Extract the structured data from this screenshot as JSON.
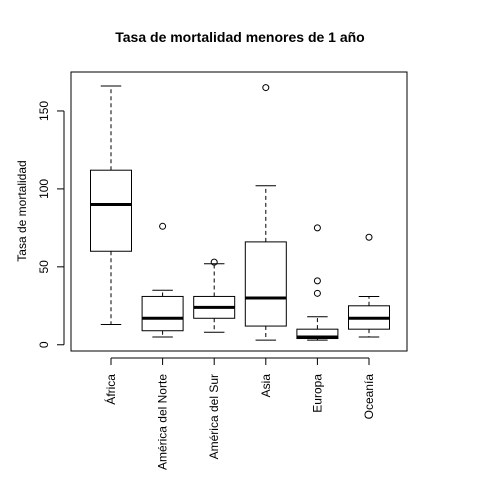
{
  "chart_data": {
    "type": "boxplot",
    "title": "Tasa de mortalidad menores de 1 año",
    "xlabel": "",
    "ylabel": "Tasa de mortalidad",
    "ylim": [
      -4,
      175
    ],
    "yticks": [
      0,
      50,
      100,
      150
    ],
    "grid": false,
    "categories": [
      "África",
      "América del Norte",
      "América del Sur",
      "Asia",
      "Europa",
      "Oceanía"
    ],
    "boxes": [
      {
        "category": "África",
        "whisker_low": 13,
        "q1": 60,
        "median": 90,
        "q3": 112,
        "whisker_high": 166,
        "outliers": []
      },
      {
        "category": "América del Norte",
        "whisker_low": 5,
        "q1": 9,
        "median": 17,
        "q3": 31,
        "whisker_high": 35,
        "outliers": [
          76
        ]
      },
      {
        "category": "América del Sur",
        "whisker_low": 8,
        "q1": 17,
        "median": 24,
        "q3": 31,
        "whisker_high": 52,
        "outliers": [
          53
        ]
      },
      {
        "category": "Asia",
        "whisker_low": 3,
        "q1": 12,
        "median": 30,
        "q3": 66,
        "whisker_high": 102,
        "outliers": [
          165
        ]
      },
      {
        "category": "Europa",
        "whisker_low": 3,
        "q1": 4,
        "median": 5,
        "q3": 10,
        "whisker_high": 18,
        "outliers": [
          33,
          41,
          75
        ]
      },
      {
        "category": "Oceanía",
        "whisker_low": 5,
        "q1": 10,
        "median": 17,
        "q3": 25,
        "whisker_high": 31,
        "outliers": [
          69
        ]
      }
    ]
  }
}
